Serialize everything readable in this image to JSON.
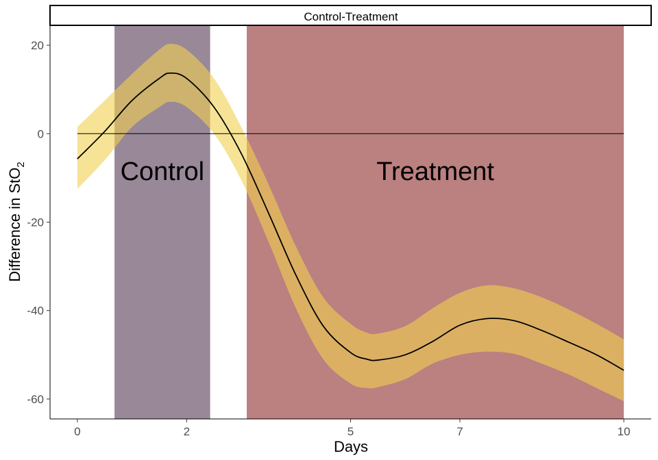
{
  "chart_data": {
    "type": "line",
    "facet_title": "Control-Treatment",
    "xlabel": "Days",
    "ylabel": "Difference in StO",
    "ylabel_subscript": "2",
    "xlim": [
      -0.5,
      10.5
    ],
    "ylim": [
      -64.5,
      24.5
    ],
    "x_ticks": [
      0,
      2,
      5,
      7,
      10
    ],
    "y_ticks": [
      -60,
      -40,
      -20,
      0,
      20
    ],
    "hline": 0,
    "grid": false,
    "regions": [
      {
        "label": "Control",
        "x_start": 0.68,
        "x_end": 2.43,
        "color": "#988898"
      },
      {
        "label": "Treatment",
        "x_start": 3.1,
        "x_end": 10.0,
        "color": "#bb8080"
      }
    ],
    "series": [
      {
        "x": [
          0,
          0.5,
          1,
          1.5,
          1.7,
          2,
          2.5,
          3,
          3.5,
          4,
          4.5,
          5,
          5.3,
          5.5,
          6,
          6.5,
          7,
          7.5,
          8,
          8.5,
          9,
          9.5,
          10
        ],
        "y": [
          -5.7,
          0.5,
          7.5,
          12.5,
          13.7,
          12.5,
          6.0,
          -4.5,
          -18.0,
          -32.0,
          -43.5,
          -49.5,
          -51.0,
          -51.2,
          -50.0,
          -47.0,
          -43.3,
          -41.8,
          -42.3,
          -44.5,
          -47.2,
          -50.0,
          -53.5
        ],
        "lower": [
          -12.5,
          -6.0,
          1.5,
          6.0,
          7.2,
          6.0,
          0.0,
          -10.5,
          -24.5,
          -39.5,
          -51.0,
          -56.5,
          -57.5,
          -57.3,
          -55.5,
          -52.0,
          -50.0,
          -49.3,
          -49.8,
          -52.0,
          -54.5,
          -57.5,
          -60.5
        ],
        "upper": [
          1.5,
          7.5,
          13.5,
          19.0,
          20.3,
          19.0,
          12.5,
          1.5,
          -11.5,
          -25.5,
          -37.0,
          -43.0,
          -45.0,
          -45.2,
          -43.5,
          -39.5,
          -36.0,
          -34.3,
          -35.0,
          -37.0,
          -39.8,
          -43.0,
          -46.5
        ],
        "ribbon_color": "#f0d050",
        "line_color": "#000000"
      }
    ]
  }
}
